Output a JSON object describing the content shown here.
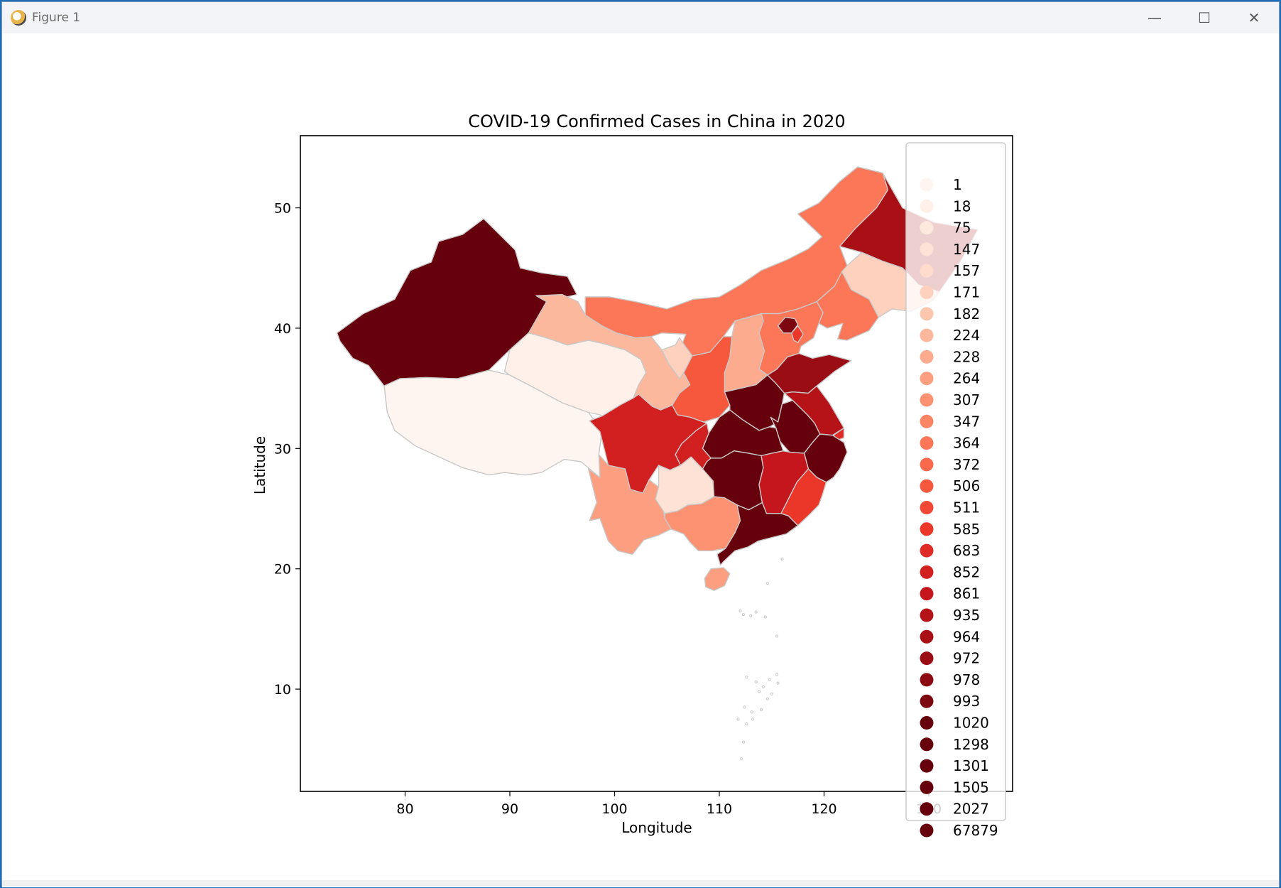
{
  "window": {
    "title": "Figure 1",
    "minimize_glyph": "—",
    "maximize_glyph": "☐",
    "close_glyph": "✕"
  },
  "chart_data": {
    "type": "choropleth",
    "title": "COVID-19 Confirmed Cases in China in 2020",
    "xlabel": "Longitude",
    "ylabel": "Latitude",
    "xlim": [
      70,
      138
    ],
    "ylim": [
      1.5,
      56
    ],
    "xticks": [
      80,
      90,
      100,
      110,
      120,
      130
    ],
    "yticks": [
      10,
      20,
      30,
      40,
      50
    ],
    "colormap": "Reds",
    "legend_placement": "upper-right",
    "legend_values": [
      1,
      18,
      75,
      147,
      157,
      171,
      182,
      224,
      228,
      264,
      307,
      347,
      364,
      372,
      506,
      511,
      585,
      683,
      852,
      861,
      935,
      964,
      972,
      978,
      993,
      1020,
      1298,
      1301,
      1505,
      2027,
      67879
    ],
    "legend_colors": [
      "#fff5f0",
      "#fff0e9",
      "#fee9df",
      "#fee2d5",
      "#fedbcc",
      "#fdd1be",
      "#fcc5ad",
      "#fcb89d",
      "#fcab8f",
      "#fc9e80",
      "#fc9272",
      "#fb8464",
      "#fb7757",
      "#fa694b",
      "#f6583e",
      "#f24734",
      "#ea372a",
      "#de2b25",
      "#d21f20",
      "#c4161c",
      "#b61319",
      "#a91016",
      "#9b0d14",
      "#8c0b13",
      "#7c0711",
      "#67000d",
      "#67000d",
      "#67000d",
      "#67000d",
      "#67000d",
      "#67000d"
    ],
    "edge_color": "#c8c8c8"
  }
}
